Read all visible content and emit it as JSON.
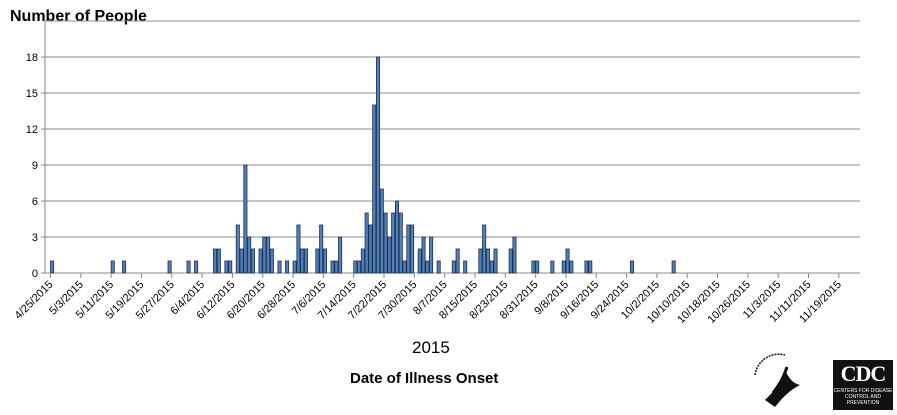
{
  "chart_data": {
    "type": "bar",
    "ylabel": "Number of People",
    "xlabel": "Date of Illness Onset",
    "xlabel_year": "2015",
    "ylim": [
      0,
      21
    ],
    "yticks": [
      0,
      3,
      6,
      9,
      12,
      15,
      18
    ],
    "grid": true,
    "bar_color": "#4f81bd",
    "xticks": [
      "4/25/2015",
      "5/3/2015",
      "5/11/2015",
      "5/19/2015",
      "5/27/2015",
      "6/4/2015",
      "6/12/2015",
      "6/20/2015",
      "6/28/2015",
      "7/6/2015",
      "7/14/2015",
      "7/22/2015",
      "7/30/2015",
      "8/7/2015",
      "8/15/2015",
      "8/23/2015",
      "8/31/2015",
      "9/8/2015",
      "9/16/2015",
      "9/24/2015",
      "10/2/2015",
      "10/10/2015",
      "10/18/2015",
      "10/26/2015",
      "11/3/2015",
      "11/11/2015",
      "11/19/2015"
    ],
    "data": [
      [
        "4/25/2015",
        1
      ],
      [
        "5/11/2015",
        1
      ],
      [
        "5/14/2015",
        1
      ],
      [
        "5/26/2015",
        1
      ],
      [
        "5/31/2015",
        1
      ],
      [
        "6/2/2015",
        1
      ],
      [
        "6/7/2015",
        2
      ],
      [
        "6/8/2015",
        2
      ],
      [
        "6/10/2015",
        1
      ],
      [
        "6/11/2015",
        1
      ],
      [
        "6/13/2015",
        4
      ],
      [
        "6/14/2015",
        2
      ],
      [
        "6/15/2015",
        9
      ],
      [
        "6/16/2015",
        3
      ],
      [
        "6/17/2015",
        2
      ],
      [
        "6/19/2015",
        2
      ],
      [
        "6/20/2015",
        3
      ],
      [
        "6/21/2015",
        3
      ],
      [
        "6/22/2015",
        2
      ],
      [
        "6/24/2015",
        1
      ],
      [
        "6/26/2015",
        1
      ],
      [
        "6/28/2015",
        1
      ],
      [
        "6/29/2015",
        4
      ],
      [
        "6/30/2015",
        2
      ],
      [
        "7/1/2015",
        2
      ],
      [
        "7/4/2015",
        2
      ],
      [
        "7/5/2015",
        4
      ],
      [
        "7/6/2015",
        2
      ],
      [
        "7/8/2015",
        1
      ],
      [
        "7/9/2015",
        1
      ],
      [
        "7/10/2015",
        3
      ],
      [
        "7/14/2015",
        1
      ],
      [
        "7/15/2015",
        1
      ],
      [
        "7/16/2015",
        2
      ],
      [
        "7/17/2015",
        5
      ],
      [
        "7/18/2015",
        4
      ],
      [
        "7/19/2015",
        14
      ],
      [
        "7/20/2015",
        18
      ],
      [
        "7/21/2015",
        7
      ],
      [
        "7/22/2015",
        5
      ],
      [
        "7/23/2015",
        3
      ],
      [
        "7/24/2015",
        5
      ],
      [
        "7/25/2015",
        6
      ],
      [
        "7/26/2015",
        5
      ],
      [
        "7/27/2015",
        1
      ],
      [
        "7/28/2015",
        4
      ],
      [
        "7/29/2015",
        4
      ],
      [
        "7/31/2015",
        2
      ],
      [
        "8/1/2015",
        3
      ],
      [
        "8/2/2015",
        1
      ],
      [
        "8/3/2015",
        3
      ],
      [
        "8/5/2015",
        1
      ],
      [
        "8/9/2015",
        1
      ],
      [
        "8/10/2015",
        2
      ],
      [
        "8/12/2015",
        1
      ],
      [
        "8/16/2015",
        2
      ],
      [
        "8/17/2015",
        4
      ],
      [
        "8/18/2015",
        2
      ],
      [
        "8/19/2015",
        1
      ],
      [
        "8/20/2015",
        2
      ],
      [
        "8/24/2015",
        2
      ],
      [
        "8/25/2015",
        3
      ],
      [
        "8/30/2015",
        1
      ],
      [
        "8/31/2015",
        1
      ],
      [
        "9/4/2015",
        1
      ],
      [
        "9/7/2015",
        1
      ],
      [
        "9/8/2015",
        2
      ],
      [
        "9/9/2015",
        1
      ],
      [
        "9/13/2015",
        1
      ],
      [
        "9/14/2015",
        1
      ],
      [
        "9/25/2015",
        1
      ],
      [
        "10/6/2015",
        1
      ]
    ]
  },
  "logos": {
    "hhs": "DEPARTMENT OF HEALTH & HUMAN SERVICES USA",
    "cdc": "CDC",
    "cdc_sub": "CENTERS FOR DISEASE CONTROL AND PREVENTION"
  }
}
